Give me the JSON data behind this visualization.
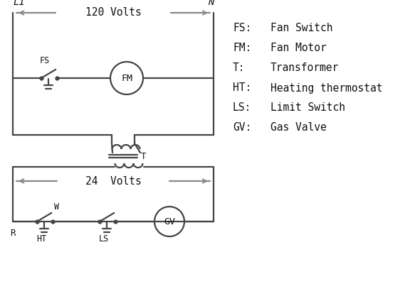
{
  "background_color": "#ffffff",
  "line_color": "#444444",
  "text_color": "#111111",
  "legend": [
    [
      "FS:",
      "Fan Switch"
    ],
    [
      "FM:",
      "Fan Motor"
    ],
    [
      "T:",
      "Transformer"
    ],
    [
      "HT:",
      "Heating thermostat"
    ],
    [
      "LS:",
      "Limit Switch"
    ],
    [
      "GV:",
      "Gas Valve"
    ]
  ],
  "L1_label": "L1",
  "N_label": "N",
  "volts120_label": "120 Volts",
  "volts24_label": "24  Volts",
  "T_label": "T",
  "FS_label": "FS",
  "FM_label": "FM",
  "R_label": "R",
  "W_label": "W",
  "HT_label": "HT",
  "LS_label": "LS",
  "GV_label": "GV"
}
